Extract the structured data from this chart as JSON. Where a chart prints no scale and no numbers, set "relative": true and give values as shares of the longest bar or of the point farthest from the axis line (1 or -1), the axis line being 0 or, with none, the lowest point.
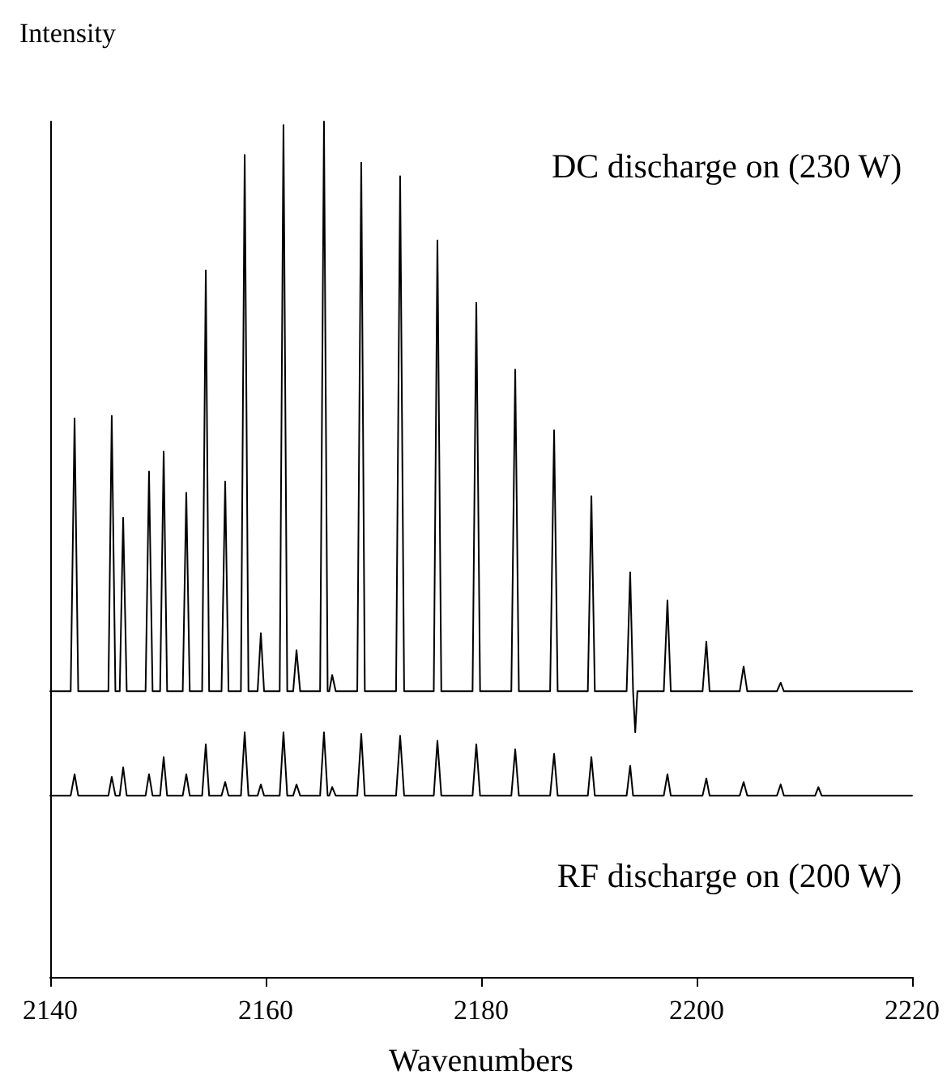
{
  "chart_data": {
    "type": "line",
    "xlabel": "Wavenumbers",
    "ylabel": "Intensity",
    "relative": true,
    "xlim": [
      2140,
      2220
    ],
    "xticks": [
      2140,
      2160,
      2180,
      2200,
      2220
    ],
    "grid": false,
    "marker": "none",
    "line_style": "solid",
    "annotations": [
      "DC discharge on (230 W)",
      "RF discharge on (200 W)"
    ],
    "series": [
      {
        "color": "#000000",
        "x": [
          2140,
          2141.9,
          2142.26,
          2142.6,
          2145.4,
          2145.71,
          2146.05,
          2146.45,
          2146.77,
          2147.1,
          2148.85,
          2149.17,
          2149.5,
          2150.2,
          2150.53,
          2150.85,
          2152.3,
          2152.63,
          2152.95,
          2154.1,
          2154.44,
          2154.75,
          2155.9,
          2156.24,
          2156.55,
          2157.7,
          2158.05,
          2158.4,
          2159.25,
          2159.55,
          2159.85,
          2161.3,
          2161.65,
          2162.0,
          2162.55,
          2162.86,
          2163.2,
          2165.05,
          2165.41,
          2165.75,
          2165.9,
          2166.17,
          2166.5,
          2168.5,
          2168.87,
          2169.2,
          2172.1,
          2172.48,
          2172.85,
          2175.6,
          2175.94,
          2176.3,
          2179.2,
          2179.55,
          2179.9,
          2182.8,
          2183.16,
          2183.5,
          2186.4,
          2186.77,
          2187.1,
          2189.9,
          2190.23,
          2190.55,
          2193.5,
          2193.83,
          2194.1,
          2194.3,
          2194.5,
          2196.95,
          2197.29,
          2197.6,
          2200.55,
          2200.9,
          2201.2,
          2204.0,
          2204.36,
          2204.7,
          2207.45,
          2207.8,
          2208.1,
          2220
        ],
        "values": [
          0.334,
          0.334,
          0.653,
          0.334,
          0.334,
          0.656,
          0.334,
          0.334,
          0.537,
          0.334,
          0.334,
          0.591,
          0.334,
          0.334,
          0.614,
          0.334,
          0.334,
          0.566,
          0.334,
          0.334,
          0.826,
          0.334,
          0.334,
          0.579,
          0.334,
          0.334,
          0.961,
          0.334,
          0.334,
          0.402,
          0.334,
          0.334,
          0.996,
          0.334,
          0.334,
          0.382,
          0.334,
          0.334,
          1.0,
          0.334,
          0.334,
          0.353,
          0.334,
          0.334,
          0.952,
          0.334,
          0.334,
          0.936,
          0.334,
          0.334,
          0.861,
          0.334,
          0.334,
          0.788,
          0.334,
          0.334,
          0.71,
          0.334,
          0.334,
          0.639,
          0.334,
          0.334,
          0.562,
          0.334,
          0.334,
          0.473,
          0.334,
          0.286,
          0.334,
          0.334,
          0.44,
          0.334,
          0.334,
          0.392,
          0.334,
          0.334,
          0.363,
          0.334,
          0.334,
          0.344,
          0.334,
          0.334
        ]
      },
      {
        "color": "#000000",
        "x": [
          2140,
          2141.9,
          2142.26,
          2142.6,
          2145.4,
          2145.71,
          2146.05,
          2146.45,
          2146.77,
          2147.1,
          2148.85,
          2149.17,
          2149.5,
          2150.2,
          2150.53,
          2150.85,
          2152.3,
          2152.63,
          2152.95,
          2154.1,
          2154.44,
          2154.75,
          2155.9,
          2156.24,
          2156.55,
          2157.7,
          2158.05,
          2158.4,
          2159.25,
          2159.55,
          2159.85,
          2161.3,
          2161.65,
          2162.0,
          2162.55,
          2162.86,
          2163.2,
          2165.05,
          2165.41,
          2165.75,
          2165.9,
          2166.17,
          2166.5,
          2168.5,
          2168.87,
          2169.2,
          2172.1,
          2172.48,
          2172.85,
          2175.6,
          2175.94,
          2176.3,
          2179.2,
          2179.55,
          2179.9,
          2182.8,
          2183.16,
          2183.5,
          2186.4,
          2186.77,
          2187.1,
          2189.9,
          2190.23,
          2190.55,
          2193.5,
          2193.83,
          2194.1,
          2196.95,
          2197.29,
          2197.6,
          2200.55,
          2200.9,
          2201.2,
          2204.0,
          2204.36,
          2204.7,
          2207.45,
          2207.8,
          2208.1,
          2211.0,
          2211.3,
          2211.6,
          2220
        ],
        "values": [
          0.212,
          0.212,
          0.237,
          0.212,
          0.212,
          0.234,
          0.212,
          0.212,
          0.245,
          0.212,
          0.212,
          0.237,
          0.212,
          0.212,
          0.257,
          0.212,
          0.212,
          0.237,
          0.212,
          0.212,
          0.272,
          0.212,
          0.212,
          0.228,
          0.212,
          0.212,
          0.286,
          0.212,
          0.212,
          0.225,
          0.212,
          0.212,
          0.286,
          0.212,
          0.212,
          0.225,
          0.212,
          0.212,
          0.286,
          0.212,
          0.212,
          0.222,
          0.212,
          0.212,
          0.284,
          0.212,
          0.212,
          0.282,
          0.212,
          0.212,
          0.276,
          0.212,
          0.212,
          0.272,
          0.212,
          0.212,
          0.266,
          0.212,
          0.212,
          0.261,
          0.212,
          0.212,
          0.257,
          0.212,
          0.212,
          0.247,
          0.212,
          0.212,
          0.237,
          0.212,
          0.212,
          0.232,
          0.212,
          0.212,
          0.228,
          0.212,
          0.212,
          0.225,
          0.212,
          0.212,
          0.222,
          0.212,
          0.212
        ]
      }
    ]
  }
}
